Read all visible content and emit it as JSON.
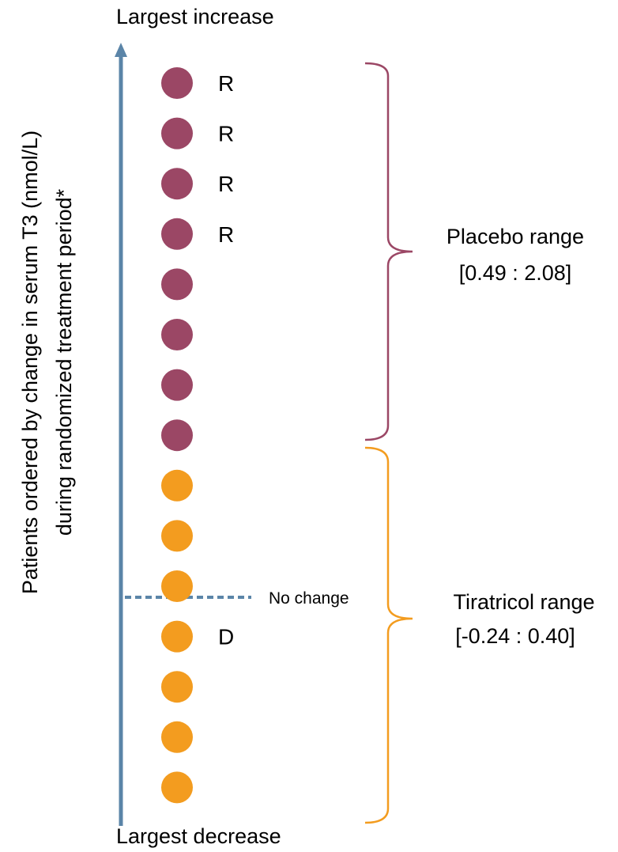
{
  "chart_data": {
    "type": "scatter",
    "axis": {
      "top_label": "Largest increase",
      "bottom_label": "Largest decrease",
      "title_line1": "Patients ordered by change in serum T3 (nmol/L)",
      "title_line2": "during randomized treatment period*"
    },
    "reference_line": {
      "label": "No change"
    },
    "groups": [
      {
        "name": "Placebo",
        "color": "#9b4765",
        "range_label_line1": "Placebo range",
        "range_label_line2": "[0.49 : 2.08]",
        "patients": [
          {
            "rank": 1,
            "flag": "R"
          },
          {
            "rank": 2,
            "flag": "R"
          },
          {
            "rank": 3,
            "flag": "R"
          },
          {
            "rank": 4,
            "flag": "R"
          },
          {
            "rank": 5,
            "flag": ""
          },
          {
            "rank": 6,
            "flag": ""
          },
          {
            "rank": 7,
            "flag": ""
          },
          {
            "rank": 8,
            "flag": ""
          }
        ]
      },
      {
        "name": "Tiratricol",
        "color": "#f39c1f",
        "range_label_line1": "Tiratricol range",
        "range_label_line2": "[-0.24 : 0.40]",
        "patients": [
          {
            "rank": 9,
            "flag": ""
          },
          {
            "rank": 10,
            "flag": ""
          },
          {
            "rank": 11,
            "flag": ""
          },
          {
            "rank": 12,
            "flag": "D"
          },
          {
            "rank": 13,
            "flag": ""
          },
          {
            "rank": 14,
            "flag": ""
          },
          {
            "rank": 15,
            "flag": ""
          }
        ]
      }
    ],
    "no_change_after_rank": 11,
    "axis_color": "#5b85a8"
  }
}
